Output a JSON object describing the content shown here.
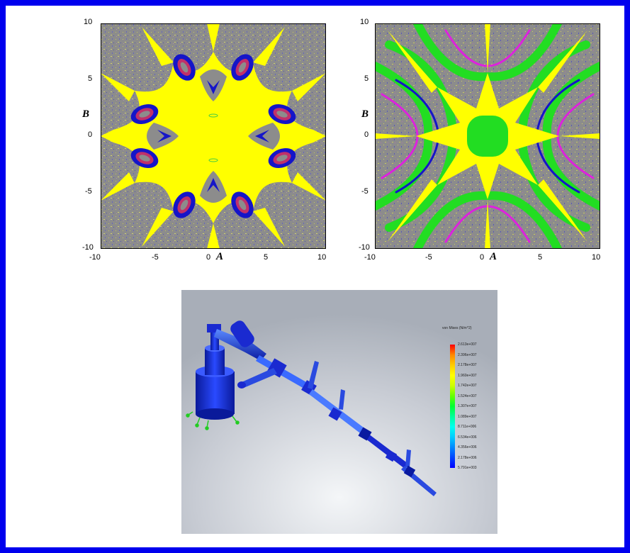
{
  "plots": [
    {
      "id": "left",
      "x_ticks": [
        "-10",
        "-5",
        "0",
        "5",
        "10"
      ],
      "y_ticks": [
        "10",
        "5",
        "0",
        "-5",
        "-10"
      ],
      "xlabel": "A",
      "ylabel": "B",
      "colors": {
        "background": "#8c8c8c",
        "basin": "#ffff00",
        "ring": "#1515c8",
        "core": "#c0306a"
      }
    },
    {
      "id": "right",
      "x_ticks": [
        "-10",
        "-5",
        "0",
        "5",
        "10"
      ],
      "y_ticks": [
        "10",
        "5",
        "0",
        "-5",
        "-10"
      ],
      "xlabel": "A",
      "ylabel": "B",
      "colors": {
        "background": "#8c8c8c",
        "basin": "#ffff00",
        "band": "#22dd22",
        "ring": "#1515c8",
        "accent": "#dd22dd"
      }
    }
  ],
  "fea": {
    "legend_title": "von Mises (N/m^2)",
    "legend_labels": [
      "2.613e+007",
      "2.396e+007",
      "2.178e+007",
      "1.960e+007",
      "1.742e+007",
      "1.524e+007",
      "1.307e+007",
      "1.089e+007",
      "8.711e+006",
      "6.534e+006",
      "4.356e+006",
      "2.178e+006",
      "5.791e+003"
    ],
    "legend_colors": [
      "#ff0000",
      "#ff8800",
      "#ffcc00",
      "#ffff00",
      "#ccff00",
      "#66ff00",
      "#00ff33",
      "#00ff99",
      "#00ffee",
      "#00ccff",
      "#0088ff",
      "#0044ff",
      "#0000ff"
    ]
  }
}
